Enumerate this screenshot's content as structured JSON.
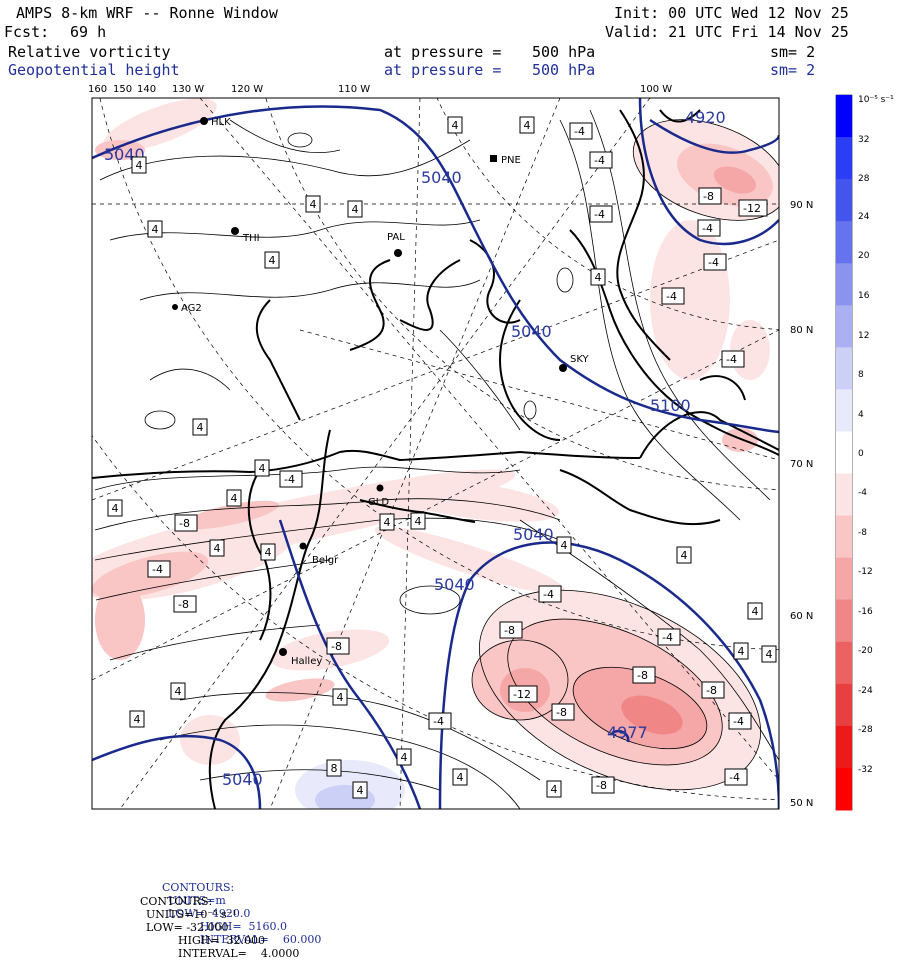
{
  "header": {
    "title": "AMPS 8-km WRF -- Ronne Window",
    "forecast_label": "Fcst:",
    "forecast_value": "69 h",
    "init": "Init: 00 UTC Wed 12 Nov 25",
    "valid": "Valid: 21 UTC Fri 14 Nov 25",
    "field1": {
      "name": "Relative vorticity",
      "pressure_text": "at pressure =",
      "pressure_value": "500 hPa",
      "sm": "sm= 2"
    },
    "field2": {
      "name": "Geopotential height",
      "pressure_text": "at pressure =",
      "pressure_value": "500 hPa",
      "sm": "sm= 2"
    }
  },
  "longitude_labels": [
    "160",
    "150",
    "140",
    "130 W",
    "120 W",
    "110 W",
    "100 W"
  ],
  "latitude_labels": [
    "90 N",
    "80 N",
    "70 N",
    "60 N",
    "50 N"
  ],
  "stations": [
    "HLK",
    "PNE",
    "THI",
    "PAL",
    "AG2",
    "SKY",
    "GLD",
    "Belgr",
    "Halley"
  ],
  "height_contour_labels": [
    "5040",
    "5040",
    "5040",
    "5040",
    "5040",
    "5040",
    "4920",
    "5100",
    "4977"
  ],
  "vorticity_labels_positive": [
    "4",
    "4",
    "4",
    "4",
    "4",
    "4",
    "4",
    "4",
    "4",
    "4",
    "4",
    "4",
    "4",
    "4",
    "4",
    "4",
    "4",
    "4",
    "4",
    "4",
    "8",
    "4",
    "4",
    "4",
    "4",
    "4",
    "4",
    "4",
    "4"
  ],
  "vorticity_labels_negative": [
    "-4",
    "-4",
    "-4",
    "-4",
    "-4",
    "-4",
    "-4",
    "-8",
    "-8",
    "-4",
    "-4",
    "-12",
    "-8",
    "-8",
    "-12",
    "-8",
    "-8",
    "-8",
    "-8",
    "-4",
    "-4",
    "-4",
    "-4",
    "-8",
    "-4"
  ],
  "colorbar": {
    "unit_label": "10⁻⁵ s⁻¹",
    "tick_labels": [
      "32",
      "28",
      "24",
      "20",
      "16",
      "12",
      "8",
      "4",
      "0",
      "-4",
      "-8",
      "-12",
      "-16",
      "-20",
      "-24",
      "-28",
      "-32"
    ],
    "colors": [
      "#0000ff",
      "#2b3df5",
      "#4455ee",
      "#6673ee",
      "#8a93ee",
      "#aab0f2",
      "#ccd0f7",
      "#e8eafc",
      "#ffffff",
      "#fde4e4",
      "#f9c5c5",
      "#f5a6a6",
      "#f08686",
      "#ec6262",
      "#e84040",
      "#ee1a1a",
      "#ff0000"
    ]
  },
  "footer": {
    "line1": {
      "label": "CONTOURS:",
      "units": "UNITS=m",
      "low": "LOW=  4920.0",
      "high": "HIGH=  5160.0",
      "interval": "INTERVAL=    60.000"
    },
    "line2": {
      "label": "CONTOURS:",
      "units": "UNITS=10⁻⁵ s⁻¹",
      "low": "LOW= -32.000",
      "high": "HIGH=  32.000",
      "interval": "INTERVAL=    4.0000"
    }
  }
}
